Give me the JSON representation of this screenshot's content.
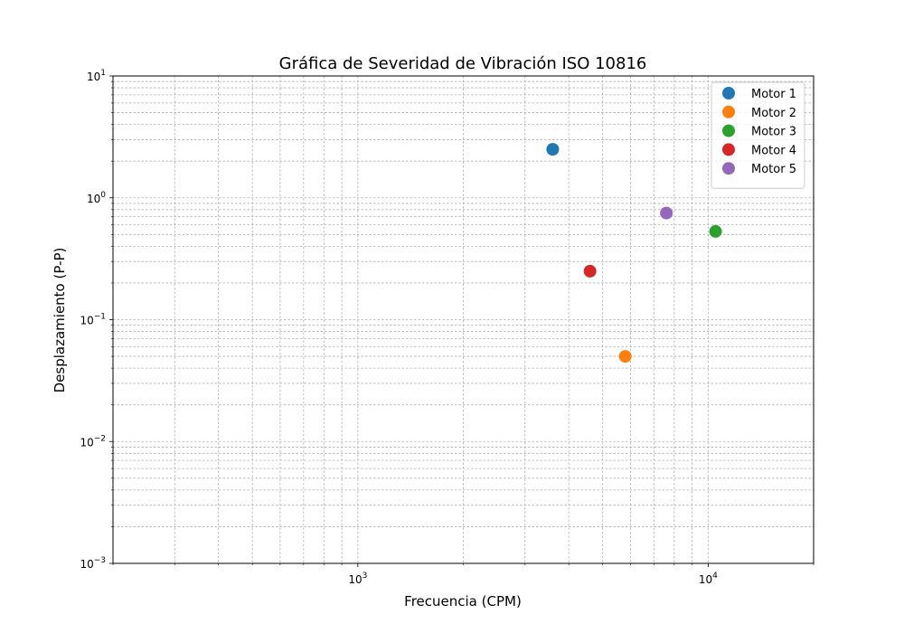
{
  "chart_data": {
    "type": "scatter",
    "title": "Gráfica de Severidad de Vibración ISO 10816",
    "xlabel": "Frecuencia (CPM)",
    "ylabel": "Desplazamiento (P-P)",
    "x_scale": "log",
    "y_scale": "log",
    "xlim": [
      200,
      20000
    ],
    "ylim": [
      0.001,
      10
    ],
    "x_ticks": [
      {
        "value": 1000,
        "base": "10",
        "exp": "3"
      },
      {
        "value": 10000,
        "base": "10",
        "exp": "4"
      }
    ],
    "y_ticks": [
      {
        "value": 0.001,
        "base": "10",
        "exp": "−3"
      },
      {
        "value": 0.01,
        "base": "10",
        "exp": "−2"
      },
      {
        "value": 0.1,
        "base": "10",
        "exp": "−1"
      },
      {
        "value": 1,
        "base": "10",
        "exp": "0"
      },
      {
        "value": 10,
        "base": "10",
        "exp": "1"
      }
    ],
    "grid": true,
    "legend_position": "top-right",
    "series": [
      {
        "name": "Motor 1",
        "color": "#1f77b4",
        "x": [
          3600
        ],
        "y": [
          2.5
        ]
      },
      {
        "name": "Motor 2",
        "color": "#ff7f0e",
        "x": [
          5800
        ],
        "y": [
          0.05
        ]
      },
      {
        "name": "Motor 3",
        "color": "#2ca02c",
        "x": [
          10500
        ],
        "y": [
          0.53
        ]
      },
      {
        "name": "Motor 4",
        "color": "#d62728",
        "x": [
          4600
        ],
        "y": [
          0.25
        ]
      },
      {
        "name": "Motor 5",
        "color": "#9467bd",
        "x": [
          7600
        ],
        "y": [
          0.75
        ]
      }
    ]
  }
}
